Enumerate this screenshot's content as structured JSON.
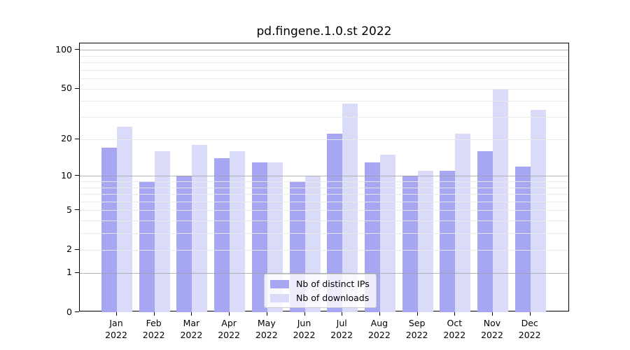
{
  "title": "pd.fingene.1.0.st 2022",
  "chart_data": {
    "type": "bar",
    "title": "pd.fingene.1.0.st 2022",
    "categories": [
      "Jan",
      "Feb",
      "Mar",
      "Apr",
      "May",
      "Jun",
      "Jul",
      "Aug",
      "Sep",
      "Oct",
      "Nov",
      "Dec"
    ],
    "category_year": "2022",
    "series": [
      {
        "name": "Nb of distinct IPs",
        "color": "#a6a6f2",
        "values": [
          17,
          9,
          10,
          14,
          13,
          9,
          22,
          13,
          10,
          11,
          16,
          12
        ]
      },
      {
        "name": "Nb of downloads",
        "color": "#dadaf9",
        "values": [
          25,
          16,
          18,
          16,
          13,
          10,
          38,
          15,
          11,
          22,
          50,
          34
        ]
      }
    ],
    "yscale": "log1p",
    "ylim": [
      0,
      112
    ],
    "yticks": [
      0,
      1,
      2,
      5,
      10,
      20,
      50,
      100
    ],
    "major_gridlines": [
      1,
      10,
      100
    ],
    "minor_gridlines": [
      2,
      3,
      4,
      5,
      6,
      7,
      8,
      9,
      20,
      30,
      40,
      50,
      60,
      70,
      80,
      90
    ],
    "grid": true,
    "legend_position": "bottom-center"
  },
  "colors": {
    "bar_distinct_ips": "#a6a6f2",
    "bar_downloads": "#dadaf9",
    "major_grid": "#9e9e9e",
    "minor_grid": "#e9e9e9",
    "axis": "#000000",
    "legend_border": "#cccccc",
    "background": "#ffffff"
  }
}
